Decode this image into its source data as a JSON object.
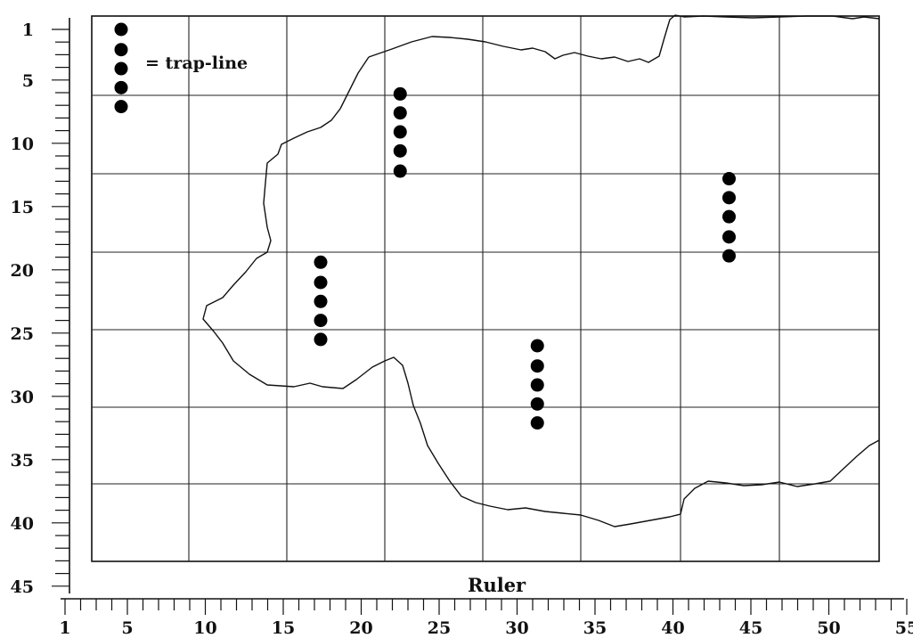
{
  "legend": {
    "label": "= trap-line"
  },
  "ruler_label": "Ruler",
  "y_axis": {
    "labels": [
      "1",
      "5",
      "10",
      "15",
      "20",
      "25",
      "30",
      "35",
      "40",
      "45"
    ]
  },
  "x_axis": {
    "labels": [
      "1",
      "5",
      "10",
      "15",
      "20",
      "25",
      "30",
      "35",
      "40",
      "45",
      "50",
      "55"
    ]
  },
  "trap_lines": [
    {
      "id": "legend",
      "x": 4.6,
      "y": [
        1,
        2.6,
        4.1,
        5.6,
        7.1
      ]
    },
    {
      "id": "A",
      "x": 22.5,
      "y": [
        6.1,
        7.6,
        9.1,
        10.6,
        12.2
      ]
    },
    {
      "id": "B",
      "x": 17.4,
      "y": [
        19.4,
        21.0,
        22.5,
        24.0,
        25.5
      ]
    },
    {
      "id": "C",
      "x": 31.3,
      "y": [
        26.0,
        27.6,
        29.1,
        30.6,
        32.1
      ]
    },
    {
      "id": "D",
      "x": 43.6,
      "y": [
        12.8,
        14.3,
        15.8,
        17.4,
        18.9
      ]
    }
  ]
}
